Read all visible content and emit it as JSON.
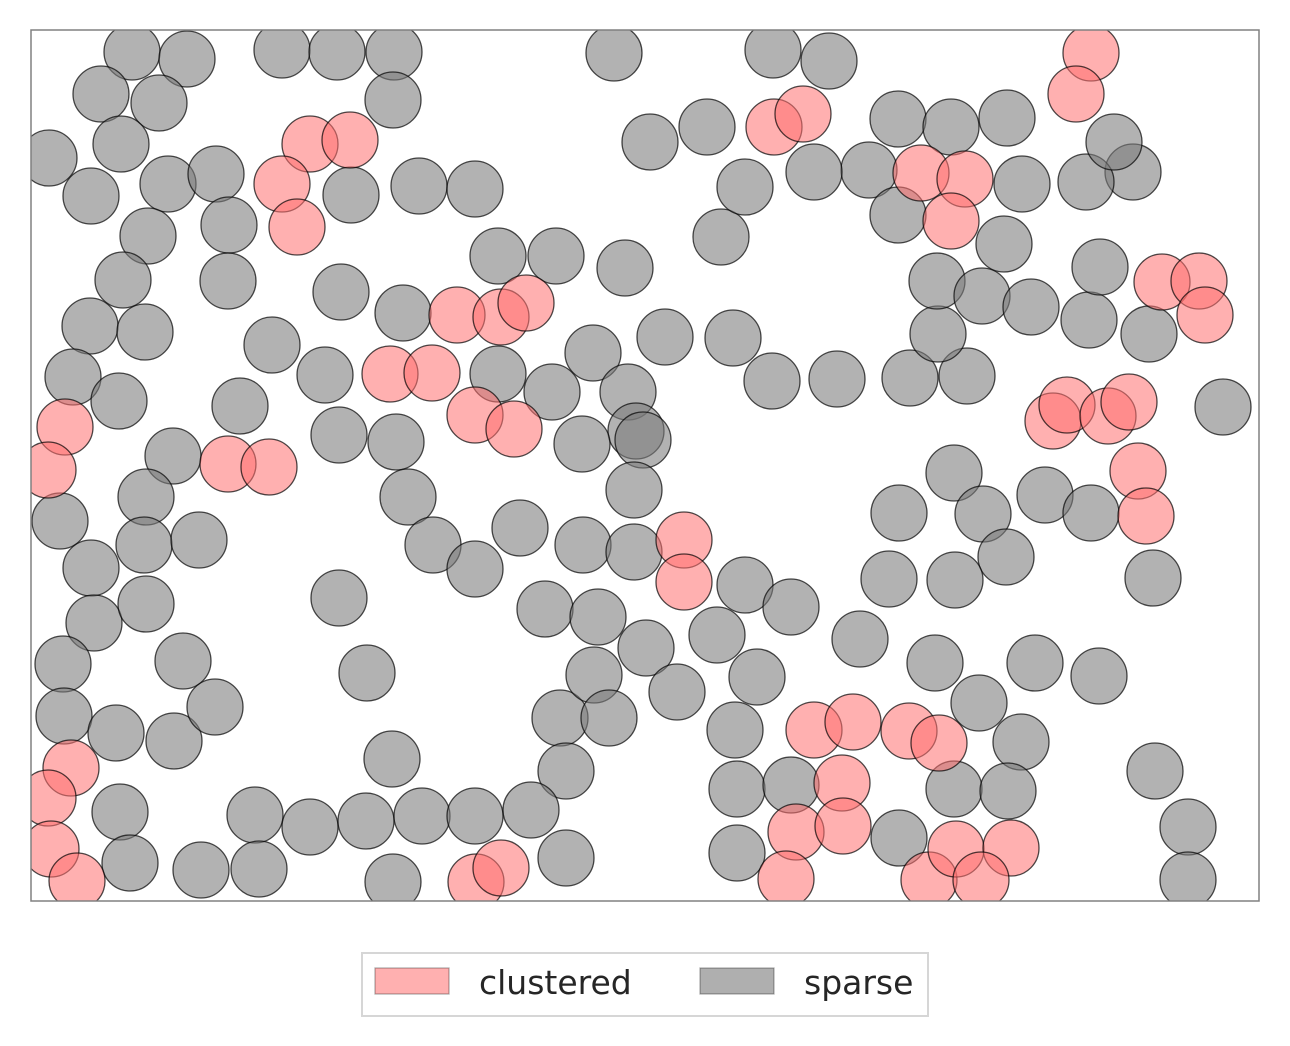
{
  "chart_data": {
    "type": "scatter",
    "title": "",
    "xlabel": "",
    "ylabel": "",
    "grid": false,
    "legend": {
      "placement": "bottom-center",
      "columns": 2
    },
    "series": [
      {
        "name": "clustered",
        "color": "#ff6f6f",
        "points": [
          [
            1060,
            23
          ],
          [
            1045,
            64
          ],
          [
            743,
            97
          ],
          [
            772,
            84
          ],
          [
            279,
            114
          ],
          [
            319,
            110
          ],
          [
            251,
            154
          ],
          [
            266,
            197
          ],
          [
            890,
            143
          ],
          [
            934,
            149
          ],
          [
            920,
            191
          ],
          [
            426,
            285
          ],
          [
            470,
            287
          ],
          [
            495,
            273
          ],
          [
            359,
            344
          ],
          [
            401,
            343
          ],
          [
            444,
            385
          ],
          [
            483,
            399
          ],
          [
            34,
            397
          ],
          [
            17,
            440
          ],
          [
            197,
            434
          ],
          [
            238,
            437
          ],
          [
            1022,
            391
          ],
          [
            1036,
            375
          ],
          [
            1077,
            386
          ],
          [
            1098,
            372
          ],
          [
            1107,
            441
          ],
          [
            1115,
            486
          ],
          [
            1131,
            252
          ],
          [
            1168,
            251
          ],
          [
            1174,
            285
          ],
          [
            653,
            510
          ],
          [
            653,
            552
          ],
          [
            783,
            700
          ],
          [
            822,
            692
          ],
          [
            878,
            701
          ],
          [
            908,
            713
          ],
          [
            811,
            753
          ],
          [
            765,
            802
          ],
          [
            812,
            796
          ],
          [
            755,
            849
          ],
          [
            898,
            850
          ],
          [
            925,
            819
          ],
          [
            980,
            818
          ],
          [
            950,
            850
          ],
          [
            40,
            738
          ],
          [
            17,
            768
          ],
          [
            20,
            819
          ],
          [
            46,
            851
          ],
          [
            445,
            852
          ],
          [
            470,
            838
          ]
        ]
      },
      {
        "name": "sparse",
        "color": "#7a7a7a",
        "points": [
          [
            101,
            22
          ],
          [
            156,
            29
          ],
          [
            251,
            20
          ],
          [
            306,
            22
          ],
          [
            363,
            22
          ],
          [
            70,
            64
          ],
          [
            128,
            73
          ],
          [
            362,
            70
          ],
          [
            90,
            114
          ],
          [
            18,
            128
          ],
          [
            60,
            166
          ],
          [
            137,
            154
          ],
          [
            185,
            144
          ],
          [
            320,
            165
          ],
          [
            388,
            156
          ],
          [
            444,
            159
          ],
          [
            117,
            206
          ],
          [
            198,
            195
          ],
          [
            197,
            251
          ],
          [
            92,
            250
          ],
          [
            59,
            296
          ],
          [
            114,
            302
          ],
          [
            310,
            262
          ],
          [
            372,
            283
          ],
          [
            467,
            226
          ],
          [
            525,
            226
          ],
          [
            594,
            238
          ],
          [
            241,
            315
          ],
          [
            294,
            345
          ],
          [
            467,
            344
          ],
          [
            521,
            362
          ],
          [
            562,
            323
          ],
          [
            597,
            362
          ],
          [
            605,
            401
          ],
          [
            634,
            307
          ],
          [
            702,
            308
          ],
          [
            741,
            351
          ],
          [
            806,
            349
          ],
          [
            879,
            348
          ],
          [
            936,
            346
          ],
          [
            907,
            304
          ],
          [
            906,
            251
          ],
          [
            951,
            266
          ],
          [
            1000,
            277
          ],
          [
            1058,
            290
          ],
          [
            1118,
            304
          ],
          [
            1069,
            237
          ],
          [
            1102,
            142
          ],
          [
            1055,
            152
          ],
          [
            991,
            154
          ],
          [
            973,
            214
          ],
          [
            838,
            140
          ],
          [
            867,
            185
          ],
          [
            783,
            142
          ],
          [
            690,
            207
          ],
          [
            714,
            157
          ],
          [
            676,
            97
          ],
          [
            619,
            112
          ],
          [
            583,
            23
          ],
          [
            742,
            20
          ],
          [
            798,
            31
          ],
          [
            867,
            89
          ],
          [
            920,
            97
          ],
          [
            976,
            88
          ],
          [
            1083,
            112
          ],
          [
            42,
            347
          ],
          [
            88,
            371
          ],
          [
            209,
            376
          ],
          [
            308,
            405
          ],
          [
            365,
            412
          ],
          [
            551,
            414
          ],
          [
            612,
            410
          ],
          [
            142,
            426
          ],
          [
            115,
            467
          ],
          [
            29,
            491
          ],
          [
            60,
            538
          ],
          [
            113,
            515
          ],
          [
            168,
            510
          ],
          [
            63,
            593
          ],
          [
            115,
            574
          ],
          [
            152,
            631
          ],
          [
            32,
            634
          ],
          [
            33,
            686
          ],
          [
            85,
            703
          ],
          [
            143,
            711
          ],
          [
            184,
            677
          ],
          [
            308,
            568
          ],
          [
            336,
            643
          ],
          [
            377,
            467
          ],
          [
            402,
            515
          ],
          [
            444,
            539
          ],
          [
            489,
            498
          ],
          [
            552,
            515
          ],
          [
            603,
            522
          ],
          [
            603,
            460
          ],
          [
            514,
            579
          ],
          [
            567,
            587
          ],
          [
            615,
            618
          ],
          [
            646,
            662
          ],
          [
            686,
            605
          ],
          [
            714,
            555
          ],
          [
            760,
            577
          ],
          [
            726,
            647
          ],
          [
            704,
            700
          ],
          [
            829,
            609
          ],
          [
            858,
            549
          ],
          [
            868,
            483
          ],
          [
            923,
            443
          ],
          [
            952,
            484
          ],
          [
            975,
            527
          ],
          [
            924,
            550
          ],
          [
            1014,
            465
          ],
          [
            1060,
            483
          ],
          [
            1122,
            548
          ],
          [
            1192,
            377
          ],
          [
            904,
            633
          ],
          [
            948,
            673
          ],
          [
            990,
            712
          ],
          [
            1004,
            633
          ],
          [
            1068,
            646
          ],
          [
            529,
            688
          ],
          [
            563,
            645
          ],
          [
            578,
            688
          ],
          [
            535,
            741
          ],
          [
            535,
            828
          ],
          [
            361,
            729
          ],
          [
            89,
            782
          ],
          [
            99,
            833
          ],
          [
            170,
            840
          ],
          [
            224,
            785
          ],
          [
            228,
            839
          ],
          [
            279,
            797
          ],
          [
            335,
            791
          ],
          [
            391,
            786
          ],
          [
            444,
            786
          ],
          [
            500,
            780
          ],
          [
            362,
            852
          ],
          [
            706,
            759
          ],
          [
            760,
            755
          ],
          [
            706,
            823
          ],
          [
            868,
            808
          ],
          [
            923,
            759
          ],
          [
            977,
            761
          ],
          [
            1124,
            741
          ],
          [
            1157,
            797
          ],
          [
            1157,
            850
          ]
        ]
      }
    ]
  }
}
